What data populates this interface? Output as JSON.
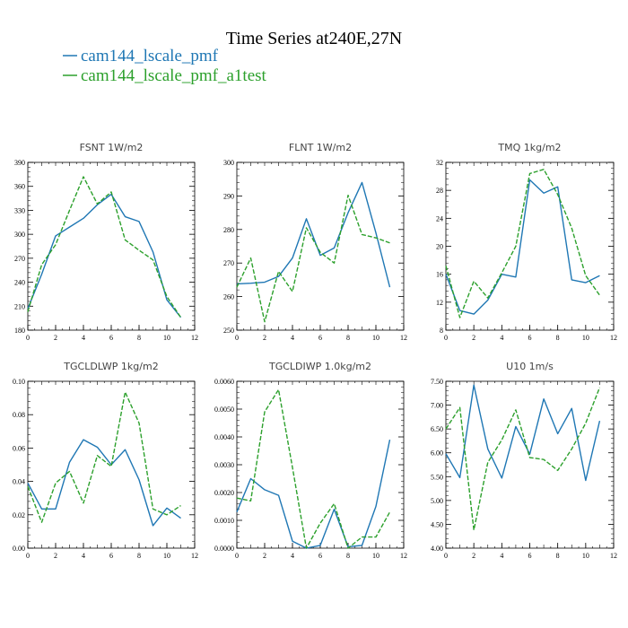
{
  "figure": {
    "title": "Time Series at240E,27N",
    "legend": [
      {
        "label": "cam144_lscale_pmf",
        "color": "#1f77b4",
        "dash": "solid"
      },
      {
        "label": "cam144_lscale_pmf_a1test",
        "color": "#2ca02c",
        "dash": "dashed"
      }
    ]
  },
  "chart_data": [
    {
      "type": "line",
      "title": "FSNT   1W/m2",
      "x": [
        0,
        1,
        2,
        3,
        4,
        5,
        6,
        7,
        8,
        9,
        10,
        11
      ],
      "xlim": [
        0,
        12
      ],
      "xticks": [
        "0",
        "2",
        "4",
        "6",
        "8",
        "10",
        "12"
      ],
      "ylim": [
        180,
        390
      ],
      "yticks": [
        "180",
        "210",
        "240",
        "270",
        "300",
        "330",
        "360",
        "390"
      ],
      "series": [
        {
          "name": "cam144_lscale_pmf",
          "values": [
            207,
            250,
            298,
            309,
            320,
            337,
            350,
            322,
            316,
            278,
            218,
            196
          ]
        },
        {
          "name": "cam144_lscale_pmf_a1test",
          "values": [
            203,
            262,
            287,
            330,
            372,
            338,
            353,
            293,
            280,
            268,
            222,
            196
          ]
        }
      ]
    },
    {
      "type": "line",
      "title": "FLNT   1W/m2",
      "x": [
        0,
        1,
        2,
        3,
        4,
        5,
        6,
        7,
        8,
        9,
        10,
        11
      ],
      "xlim": [
        0,
        12
      ],
      "xticks": [
        "0",
        "2",
        "4",
        "6",
        "8",
        "10",
        "12"
      ],
      "ylim": [
        250,
        300
      ],
      "yticks": [
        "250",
        "260",
        "270",
        "280",
        "290",
        "300"
      ],
      "series": [
        {
          "name": "cam144_lscale_pmf",
          "values": [
            263.8,
            264.0,
            264.3,
            266.0,
            271.5,
            283.2,
            272.3,
            274.5,
            285.0,
            294.0,
            279.0,
            262.8
          ]
        },
        {
          "name": "cam144_lscale_pmf_a1test",
          "values": [
            262.8,
            271.5,
            252.5,
            267.5,
            261.5,
            280.5,
            273.2,
            270.0,
            290.2,
            278.5,
            277.5,
            276.0
          ]
        }
      ]
    },
    {
      "type": "line",
      "title": "TMQ   1kg/m2",
      "x": [
        0,
        1,
        2,
        3,
        4,
        5,
        6,
        7,
        8,
        9,
        10,
        11
      ],
      "xlim": [
        0,
        12
      ],
      "xticks": [
        "0",
        "2",
        "4",
        "6",
        "8",
        "10",
        "12"
      ],
      "ylim": [
        8,
        32
      ],
      "yticks": [
        "8",
        "12",
        "16",
        "20",
        "24",
        "28",
        "32"
      ],
      "series": [
        {
          "name": "cam144_lscale_pmf",
          "values": [
            16.0,
            10.8,
            10.3,
            12.3,
            16.0,
            15.6,
            29.5,
            27.6,
            28.5,
            15.2,
            14.8,
            15.8
          ]
        },
        {
          "name": "cam144_lscale_pmf_a1test",
          "values": [
            17.2,
            9.8,
            15.0,
            12.6,
            16.2,
            20.0,
            30.4,
            31.0,
            27.4,
            22.6,
            15.8,
            13.0
          ]
        }
      ]
    },
    {
      "type": "line",
      "title": "TGCLDLWP   1kg/m2",
      "x": [
        0,
        1,
        2,
        3,
        4,
        5,
        6,
        7,
        8,
        9,
        10,
        11
      ],
      "xlim": [
        0,
        12
      ],
      "xticks": [
        "0",
        "2",
        "4",
        "6",
        "8",
        "10",
        "12"
      ],
      "ylim": [
        0,
        0.1
      ],
      "yticks": [
        "0.00",
        "0.02",
        "0.04",
        "0.06",
        "0.08",
        "0.10"
      ],
      "series": [
        {
          "name": "cam144_lscale_pmf",
          "values": [
            0.039,
            0.0235,
            0.0235,
            0.0515,
            0.065,
            0.0605,
            0.05,
            0.059,
            0.041,
            0.0135,
            0.024,
            0.018
          ]
        },
        {
          "name": "cam144_lscale_pmf_a1test",
          "values": [
            0.037,
            0.0155,
            0.039,
            0.046,
            0.027,
            0.0555,
            0.049,
            0.0935,
            0.075,
            0.0235,
            0.02,
            0.0255
          ]
        }
      ]
    },
    {
      "type": "line",
      "title": "TGCLDIWP   1.0kg/m2",
      "x": [
        0,
        1,
        2,
        3,
        4,
        5,
        6,
        7,
        8,
        9,
        10,
        11
      ],
      "xlim": [
        0,
        12
      ],
      "xticks": [
        "0",
        "2",
        "4",
        "6",
        "8",
        "10",
        "12"
      ],
      "ylim": [
        0,
        0.006
      ],
      "yticks": [
        "0.0000",
        "0.0010",
        "0.0020",
        "0.0030",
        "0.0040",
        "0.0050",
        "0.0060"
      ],
      "series": [
        {
          "name": "cam144_lscale_pmf",
          "values": [
            0.0013,
            0.0025,
            0.0021,
            0.0019,
            0.00025,
            0.0,
            0.0001,
            0.0014,
            5e-05,
            0.0001,
            0.0015,
            0.0039
          ]
        },
        {
          "name": "cam144_lscale_pmf_a1test",
          "values": [
            0.0018,
            0.0017,
            0.0049,
            0.0057,
            0.0029,
            0.0,
            0.0009,
            0.0016,
            0.0,
            0.0004,
            0.0004,
            0.0013
          ]
        }
      ]
    },
    {
      "type": "line",
      "title": "U10   1m/s",
      "x": [
        0,
        1,
        2,
        3,
        4,
        5,
        6,
        7,
        8,
        9,
        10,
        11
      ],
      "xlim": [
        0,
        12
      ],
      "xticks": [
        "0",
        "2",
        "4",
        "6",
        "8",
        "10",
        "12"
      ],
      "ylim": [
        4.0,
        7.5
      ],
      "yticks": [
        "4.00",
        "4.50",
        "5.00",
        "5.50",
        "6.00",
        "6.50",
        "7.00",
        "7.50"
      ],
      "series": [
        {
          "name": "cam144_lscale_pmf",
          "values": [
            5.98,
            5.48,
            7.42,
            6.08,
            5.47,
            6.55,
            5.97,
            7.13,
            6.4,
            6.93,
            5.42,
            6.67
          ]
        },
        {
          "name": "cam144_lscale_pmf_a1test",
          "values": [
            6.5,
            6.95,
            4.38,
            5.8,
            6.27,
            6.9,
            5.9,
            5.86,
            5.63,
            6.08,
            6.62,
            7.37
          ]
        }
      ]
    }
  ]
}
